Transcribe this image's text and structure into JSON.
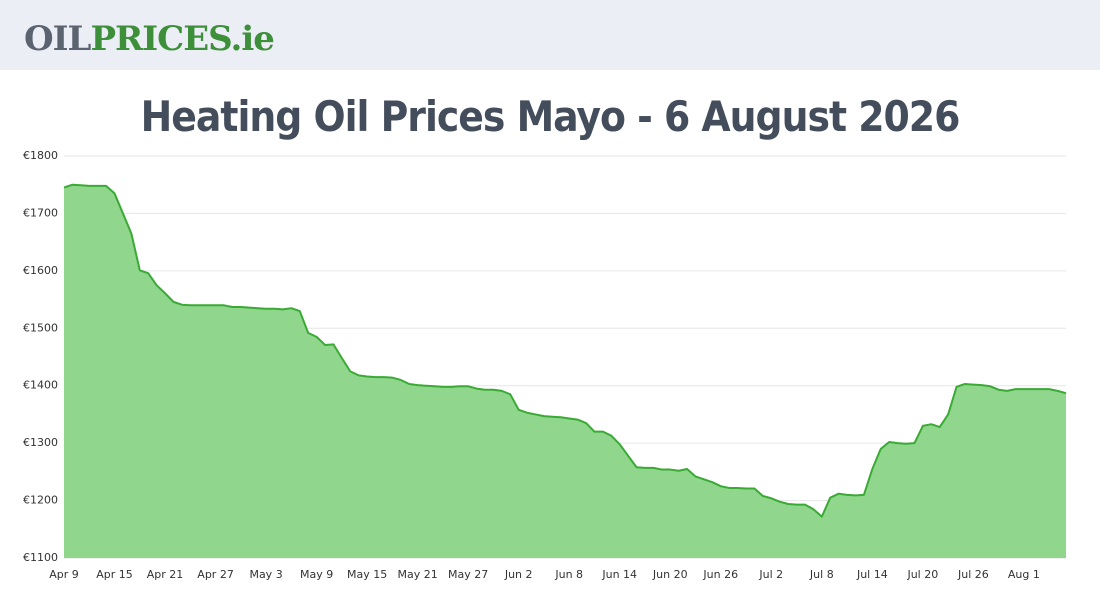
{
  "header": {
    "logo_parts": [
      "OIL",
      "PRICES.ie"
    ]
  },
  "chart_data": {
    "type": "area",
    "title": "Heating Oil Prices Mayo - 6 August 2026",
    "line_color": "#3aaa35",
    "fill_color": "#90d68d",
    "grid": true,
    "categories": [
      "Apr 9",
      null,
      null,
      null,
      null,
      null,
      "Apr 15",
      null,
      null,
      null,
      null,
      null,
      "Apr 21",
      null,
      null,
      null,
      null,
      null,
      "Apr 27",
      null,
      null,
      null,
      null,
      null,
      "May 3",
      null,
      null,
      null,
      null,
      null,
      "May 9",
      null,
      null,
      null,
      null,
      null,
      "May 15",
      null,
      null,
      null,
      null,
      null,
      "May 21",
      null,
      null,
      null,
      null,
      null,
      "May 27",
      null,
      null,
      null,
      null,
      null,
      "Jun 2",
      null,
      null,
      null,
      null,
      null,
      "Jun 8",
      null,
      null,
      null,
      null,
      null,
      "Jun 14",
      null,
      null,
      null,
      null,
      null,
      "Jun 20",
      null,
      null,
      null,
      null,
      null,
      "Jun 26",
      null,
      null,
      null,
      null,
      null,
      "Jul 2",
      null,
      null,
      null,
      null,
      null,
      "Jul 8",
      null,
      null,
      null,
      null,
      null,
      "Jul 14",
      null,
      null,
      null,
      null,
      null,
      "Jul 20",
      null,
      null,
      null,
      null,
      null,
      "Jul 26",
      null,
      null,
      null,
      null,
      null,
      "Aug 1",
      null,
      null,
      null,
      null,
      null
    ],
    "values": [
      1745,
      1750,
      1749,
      1748,
      1748,
      1748,
      1735,
      1700,
      1665,
      1601,
      1596,
      1575,
      1561,
      1546,
      1541,
      1540,
      1540,
      1540,
      1540,
      1540,
      1537,
      1537,
      1536,
      1535,
      1534,
      1534,
      1533,
      1535,
      1530,
      1492,
      1485,
      1471,
      1472,
      1448,
      1425,
      1418,
      1416,
      1415,
      1415,
      1414,
      1410,
      1403,
      1401,
      1400,
      1399,
      1398,
      1398,
      1399,
      1399,
      1395,
      1393,
      1393,
      1391,
      1385,
      1358,
      1353,
      1350,
      1347,
      1346,
      1345,
      1343,
      1341,
      1335,
      1320,
      1320,
      1313,
      1298,
      1278,
      1258,
      1257,
      1257,
      1254,
      1254,
      1252,
      1255,
      1242,
      1237,
      1232,
      1225,
      1222,
      1222,
      1221,
      1221,
      1208,
      1204,
      1198,
      1194,
      1193,
      1193,
      1185,
      1172,
      1205,
      1212,
      1210,
      1209,
      1210,
      1255,
      1290,
      1302,
      1300,
      1299,
      1300,
      1330,
      1333,
      1328,
      1350,
      1398,
      1403,
      1402,
      1401,
      1399,
      1393,
      1391,
      1394,
      1394,
      1394,
      1394,
      1394,
      1391,
      1387
    ],
    "ylim": [
      1100,
      1800
    ],
    "yticks": [
      {
        "value": 1100,
        "label": "€1100"
      },
      {
        "value": 1200,
        "label": "€1200"
      },
      {
        "value": 1300,
        "label": "€1300"
      },
      {
        "value": 1400,
        "label": "€1400"
      },
      {
        "value": 1500,
        "label": "€1500"
      },
      {
        "value": 1600,
        "label": "€1600"
      },
      {
        "value": 1700,
        "label": "€1700"
      },
      {
        "value": 1800,
        "label": "€1800"
      }
    ]
  }
}
